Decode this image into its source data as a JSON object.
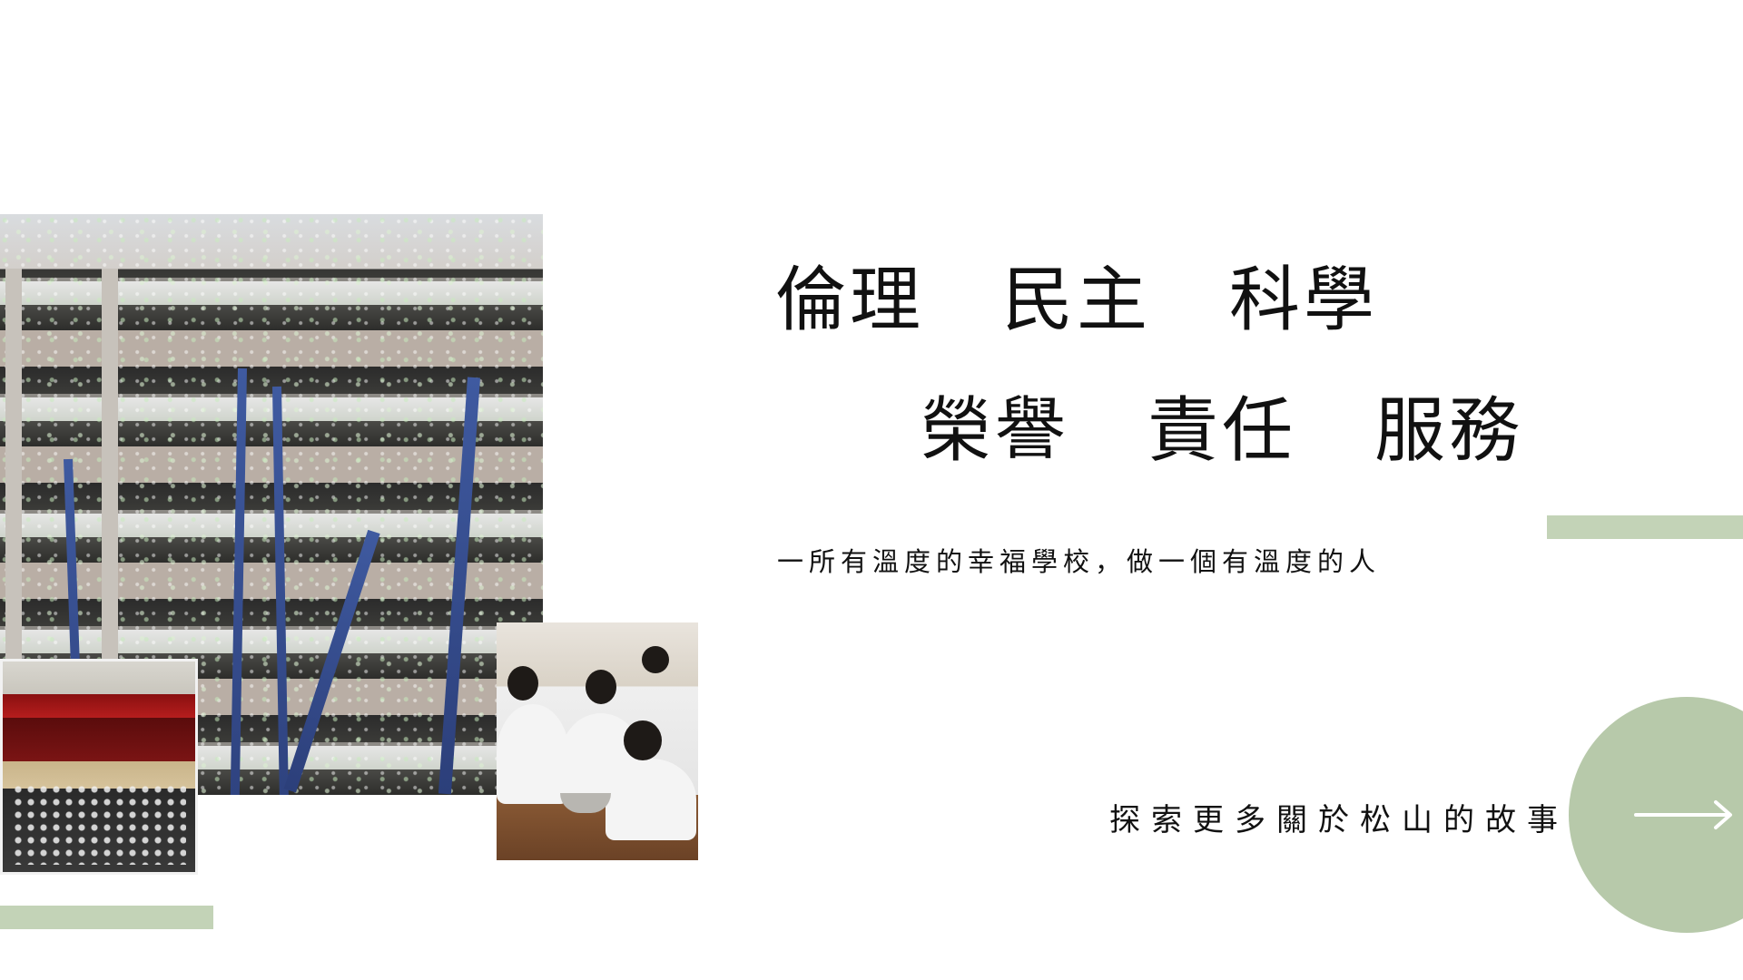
{
  "motto": {
    "line1": [
      "倫理",
      "民主",
      "科學"
    ],
    "line2": [
      "榮譽",
      "責任",
      "服務"
    ]
  },
  "tagline": "一所有溫度的幸福學校，做一個有溫度的人",
  "explore": {
    "label": "探索更多關於松山的故事",
    "icon": "arrow-right-icon"
  },
  "colors": {
    "accent_green": "#c3d3b7",
    "circle_green": "#b7c9aa",
    "text": "#111111",
    "background": "#ffffff"
  },
  "images": [
    {
      "name": "school-building-celebration-photo"
    },
    {
      "name": "auditorium-ceremony-photo"
    },
    {
      "name": "students-cooking-photo"
    }
  ]
}
